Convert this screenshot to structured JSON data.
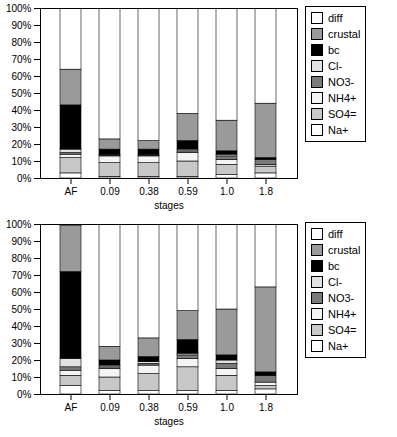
{
  "chart_data": [
    {
      "type": "bar",
      "stacked": true,
      "legend": "right",
      "x_label": "stages",
      "categories": [
        "AF",
        "0.09",
        "0.38",
        "0.59",
        "1.0",
        "1.8"
      ],
      "ylim": [
        0,
        100
      ],
      "yticks": [
        {
          "value": 0,
          "label": "0%"
        },
        {
          "value": 10,
          "label": "10%"
        },
        {
          "value": 20,
          "label": "20%"
        },
        {
          "value": 30,
          "label": "30%"
        },
        {
          "value": 40,
          "label": "40%"
        },
        {
          "value": 50,
          "label": "50%"
        },
        {
          "value": 60,
          "label": "60%"
        },
        {
          "value": 70,
          "label": "70%"
        },
        {
          "value": 80,
          "label": "80%"
        },
        {
          "value": 90,
          "label": "90%"
        },
        {
          "value": 100,
          "label": "100%"
        }
      ],
      "series": [
        {
          "name": "Na+",
          "color": "#ffffff",
          "values": [
            3,
            1,
            1,
            1,
            2,
            3
          ]
        },
        {
          "name": "SO4=",
          "color": "#c8c8c8",
          "values": [
            9,
            8,
            8,
            9,
            6,
            4
          ]
        },
        {
          "name": "NH4+",
          "color": "#f4f4f4",
          "values": [
            2,
            4,
            4,
            5,
            3,
            1
          ]
        },
        {
          "name": "NO3-",
          "color": "#7a7a7a",
          "values": [
            1,
            0.5,
            0.5,
            1,
            2,
            3
          ]
        },
        {
          "name": "Cl-",
          "color": "#e2e2e2",
          "values": [
            2,
            0.5,
            0.5,
            1,
            1,
            0
          ]
        },
        {
          "name": "bc",
          "color": "#000000",
          "values": [
            26,
            3,
            3,
            5,
            2,
            1
          ]
        },
        {
          "name": "crustal",
          "color": "#9a9a9a",
          "values": [
            21,
            6,
            5,
            16,
            18,
            32
          ]
        },
        {
          "name": "diff",
          "color": "#ffffff",
          "values": [
            36,
            77,
            78,
            62,
            66,
            56
          ]
        }
      ]
    },
    {
      "type": "bar",
      "stacked": true,
      "legend": "right",
      "x_label": "stages",
      "categories": [
        "AF",
        "0.09",
        "0.38",
        "0.59",
        "1.0",
        "1.8"
      ],
      "ylim": [
        0,
        100
      ],
      "yticks": [
        {
          "value": 0,
          "label": "0%"
        },
        {
          "value": 10,
          "label": "10%"
        },
        {
          "value": 20,
          "label": "20%"
        },
        {
          "value": 30,
          "label": "30%"
        },
        {
          "value": 40,
          "label": "40%"
        },
        {
          "value": 50,
          "label": "50%"
        },
        {
          "value": 60,
          "label": "60%"
        },
        {
          "value": 70,
          "label": "70%"
        },
        {
          "value": 80,
          "label": "80%"
        },
        {
          "value": 90,
          "label": "90%"
        },
        {
          "value": 100,
          "label": "100%"
        }
      ],
      "series": [
        {
          "name": "Na+",
          "color": "#ffffff",
          "values": [
            5,
            2,
            2,
            2,
            2,
            3
          ]
        },
        {
          "name": "SO4=",
          "color": "#c8c8c8",
          "values": [
            6,
            8,
            10,
            14,
            9,
            2
          ]
        },
        {
          "name": "NH4+",
          "color": "#f4f4f4",
          "values": [
            3,
            5,
            5,
            5,
            4,
            2
          ]
        },
        {
          "name": "NO3-",
          "color": "#7a7a7a",
          "values": [
            2,
            1,
            1,
            2,
            3,
            4
          ]
        },
        {
          "name": "Cl-",
          "color": "#e2e2e2",
          "values": [
            5,
            1,
            1,
            1,
            2,
            0
          ]
        },
        {
          "name": "bc",
          "color": "#000000",
          "values": [
            51,
            3,
            3,
            8,
            3,
            2
          ]
        },
        {
          "name": "crustal",
          "color": "#9a9a9a",
          "values": [
            27,
            8,
            11,
            17,
            27,
            50
          ]
        },
        {
          "name": "diff",
          "color": "#ffffff",
          "values": [
            1,
            72,
            67,
            51,
            50,
            37
          ]
        }
      ]
    }
  ]
}
